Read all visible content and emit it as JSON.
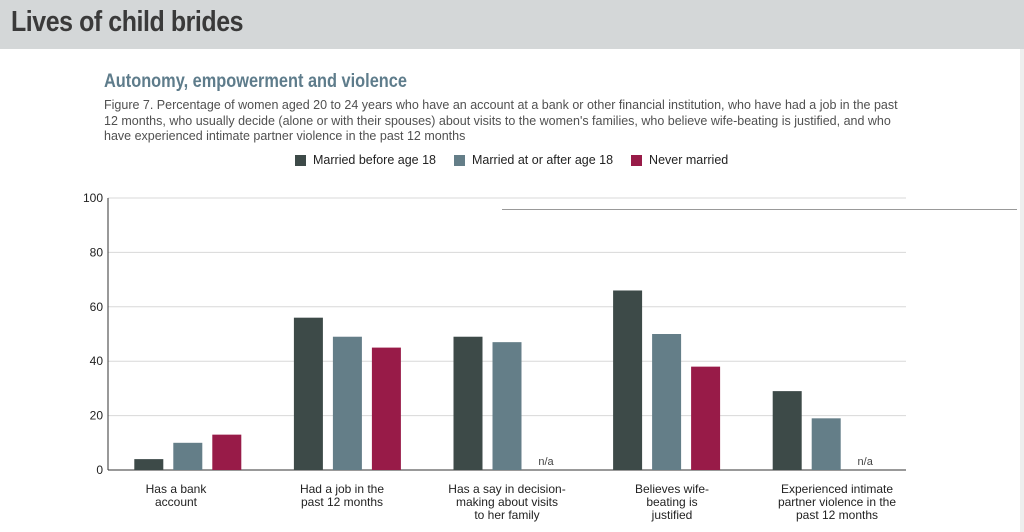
{
  "header": {
    "title": "Lives of child brides"
  },
  "section": {
    "title": "Autonomy, empowerment and violence",
    "caption": "Figure 7. Percentage of women aged 20 to 24 years who have an account at a bank or other financial institution, who have had a job in the past 12 months, who usually decide (alone or with their spouses) about visits to the women's families, who believe wife-beating is justified, and who have experienced intimate partner violence in the past 12 months"
  },
  "colors": {
    "married_before_18": "#3d4a48",
    "married_after_18": "#647e88",
    "never_married": "#981b48",
    "grid": "#d8d8d8",
    "axis": "#333333"
  },
  "chart_data": {
    "type": "bar",
    "title": "",
    "xlabel": "",
    "ylabel": "",
    "ylim": [
      0,
      100
    ],
    "yticks": [
      0,
      20,
      40,
      60,
      80,
      100
    ],
    "grid": true,
    "legend_position": "top",
    "categories": [
      "Has a bank account",
      "Had a job in the past 12 months",
      "Has a say in decision-making about visits to her family",
      "Believes wife-beating is justified",
      "Experienced intimate partner violence in the past 12 months"
    ],
    "series": [
      {
        "name": "Married before age 18",
        "values": [
          4,
          56,
          49,
          66,
          29
        ]
      },
      {
        "name": "Married at or after age 18",
        "values": [
          10,
          49,
          47,
          50,
          19
        ]
      },
      {
        "name": "Never married",
        "values": [
          13,
          45,
          null,
          38,
          null
        ]
      }
    ],
    "missing_label": "n/a"
  }
}
